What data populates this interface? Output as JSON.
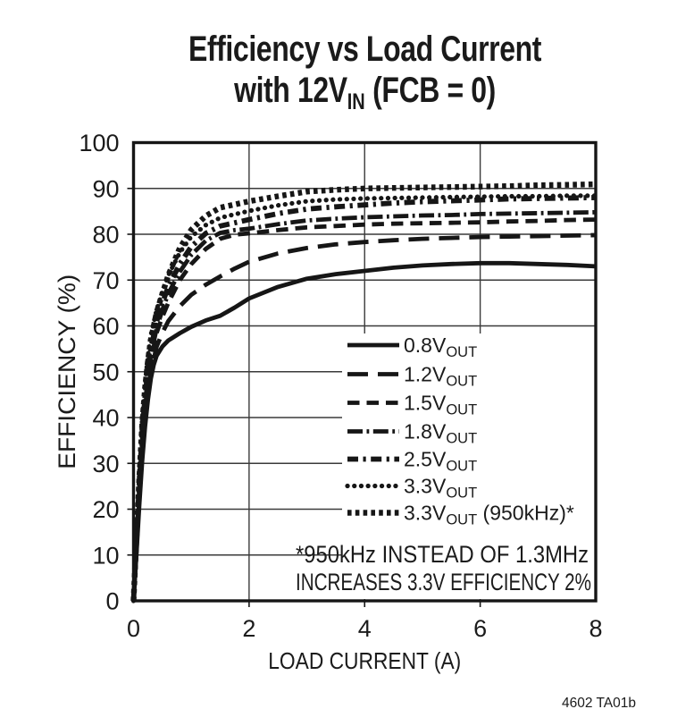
{
  "title": {
    "line1": "Efficiency vs Load Current",
    "line2_pre": "with 12V",
    "line2_sub": "IN",
    "line2_post": " (FCB = 0)"
  },
  "caption": "4602 TA01b",
  "chart_data": {
    "type": "line",
    "title": "Efficiency vs Load Current with 12VIN (FCB = 0)",
    "xlabel": "LOAD CURRENT (A)",
    "ylabel": "EFFICIENCY (%)",
    "xlim": [
      0,
      8
    ],
    "ylim": [
      0,
      100
    ],
    "x_ticks": [
      0,
      2,
      4,
      6,
      8
    ],
    "y_ticks": [
      0,
      10,
      20,
      30,
      40,
      50,
      60,
      70,
      80,
      90,
      100
    ],
    "grid": true,
    "line_color": "#161616",
    "grid_color": "#3a3a3a",
    "legend_position": "inside-lower-right",
    "footnote": [
      "*950kHz INSTEAD OF 1.3MHz",
      "INCREASES 3.3V EFFICIENCY 2%"
    ],
    "series": [
      {
        "name": "0.8VOUT",
        "label": {
          "pre": "0.8V",
          "sub": "OUT",
          "post": ""
        },
        "style": "solid",
        "points": [
          [
            0,
            0
          ],
          [
            0.05,
            10
          ],
          [
            0.1,
            21
          ],
          [
            0.15,
            30.5
          ],
          [
            0.2,
            38
          ],
          [
            0.25,
            44
          ],
          [
            0.3,
            48.5
          ],
          [
            0.35,
            51.5
          ],
          [
            0.4,
            53.5
          ],
          [
            0.5,
            55.5
          ],
          [
            0.6,
            56.8
          ],
          [
            0.8,
            58.4
          ],
          [
            1,
            59.8
          ],
          [
            1.25,
            61.2
          ],
          [
            1.5,
            62.2
          ],
          [
            1.75,
            64
          ],
          [
            2,
            66
          ],
          [
            2.5,
            68.5
          ],
          [
            3,
            70.3
          ],
          [
            3.5,
            71.3
          ],
          [
            4,
            72
          ],
          [
            4.5,
            72.7
          ],
          [
            5,
            73.2
          ],
          [
            5.5,
            73.5
          ],
          [
            6,
            73.7
          ],
          [
            6.5,
            73.7
          ],
          [
            7,
            73.5
          ],
          [
            7.5,
            73.3
          ],
          [
            8,
            73
          ]
        ]
      },
      {
        "name": "1.2VOUT",
        "label": {
          "pre": "1.2V",
          "sub": "OUT",
          "post": ""
        },
        "style": "long-dash",
        "points": [
          [
            0,
            0
          ],
          [
            0.05,
            11
          ],
          [
            0.1,
            22.5
          ],
          [
            0.15,
            32.5
          ],
          [
            0.2,
            40
          ],
          [
            0.25,
            45.5
          ],
          [
            0.3,
            50
          ],
          [
            0.4,
            55.5
          ],
          [
            0.5,
            58.5
          ],
          [
            0.6,
            61
          ],
          [
            0.8,
            64.3
          ],
          [
            1,
            66.8
          ],
          [
            1.25,
            69
          ],
          [
            1.5,
            70.8
          ],
          [
            1.75,
            72.5
          ],
          [
            2,
            74
          ],
          [
            2.5,
            75.8
          ],
          [
            3,
            77
          ],
          [
            3.5,
            77.8
          ],
          [
            4,
            78.3
          ],
          [
            4.5,
            78.7
          ],
          [
            5,
            79
          ],
          [
            5.5,
            79.2
          ],
          [
            6,
            79.4
          ],
          [
            6.5,
            79.5
          ],
          [
            7,
            79.6
          ],
          [
            7.5,
            79.7
          ],
          [
            8,
            79.8
          ]
        ]
      },
      {
        "name": "1.5VOUT",
        "label": {
          "pre": "1.5V",
          "sub": "OUT",
          "post": ""
        },
        "style": "dash",
        "points": [
          [
            0,
            0
          ],
          [
            0.05,
            12
          ],
          [
            0.1,
            24
          ],
          [
            0.15,
            34.5
          ],
          [
            0.2,
            42
          ],
          [
            0.25,
            48
          ],
          [
            0.3,
            52.5
          ],
          [
            0.4,
            58.5
          ],
          [
            0.5,
            62
          ],
          [
            0.6,
            65
          ],
          [
            0.8,
            70
          ],
          [
            1,
            73.5
          ],
          [
            1.25,
            76.8
          ],
          [
            1.5,
            79
          ],
          [
            1.75,
            79.9
          ],
          [
            2,
            80.2
          ],
          [
            2.5,
            80.9
          ],
          [
            3,
            81.5
          ],
          [
            3.5,
            81.8
          ],
          [
            4,
            82.1
          ],
          [
            4.5,
            82.3
          ],
          [
            5,
            82.4
          ],
          [
            5.5,
            82.5
          ],
          [
            6,
            82.6
          ],
          [
            6.5,
            82.8
          ],
          [
            7,
            82.9
          ],
          [
            7.5,
            83.1
          ],
          [
            8,
            83.2
          ]
        ]
      },
      {
        "name": "1.8VOUT",
        "label": {
          "pre": "1.8V",
          "sub": "OUT",
          "post": ""
        },
        "style": "dash-dot",
        "points": [
          [
            0,
            0
          ],
          [
            0.05,
            12.5
          ],
          [
            0.1,
            25
          ],
          [
            0.15,
            35.5
          ],
          [
            0.2,
            43
          ],
          [
            0.25,
            49
          ],
          [
            0.3,
            53.5
          ],
          [
            0.4,
            59.5
          ],
          [
            0.5,
            63.5
          ],
          [
            0.6,
            67
          ],
          [
            0.8,
            71.8
          ],
          [
            1,
            75.5
          ],
          [
            1.25,
            78.6
          ],
          [
            1.5,
            80.3
          ],
          [
            1.75,
            80.9
          ],
          [
            2,
            81.2
          ],
          [
            2.5,
            82.2
          ],
          [
            3,
            83
          ],
          [
            3.5,
            83.4
          ],
          [
            4,
            83.7
          ],
          [
            4.5,
            83.9
          ],
          [
            5,
            84.1
          ],
          [
            5.5,
            84.2
          ],
          [
            6,
            84.4
          ],
          [
            6.5,
            84.5
          ],
          [
            7,
            84.6
          ],
          [
            7.5,
            84.7
          ],
          [
            8,
            84.8
          ]
        ]
      },
      {
        "name": "2.5VOUT",
        "label": {
          "pre": "2.5V",
          "sub": "OUT",
          "post": ""
        },
        "style": "dash-dot-bold",
        "points": [
          [
            0,
            0
          ],
          [
            0.05,
            13
          ],
          [
            0.1,
            26
          ],
          [
            0.15,
            37
          ],
          [
            0.2,
            44.5
          ],
          [
            0.25,
            50.5
          ],
          [
            0.3,
            55
          ],
          [
            0.4,
            61
          ],
          [
            0.5,
            65
          ],
          [
            0.6,
            68.5
          ],
          [
            0.8,
            73.5
          ],
          [
            1,
            77.3
          ],
          [
            1.25,
            80.2
          ],
          [
            1.5,
            81.8
          ],
          [
            2,
            83.2
          ],
          [
            2.5,
            84.5
          ],
          [
            3,
            85.5
          ],
          [
            3.5,
            86
          ],
          [
            4,
            86.4
          ],
          [
            4.5,
            86.8
          ],
          [
            5,
            87.1
          ],
          [
            5.5,
            87.3
          ],
          [
            6,
            87.5
          ],
          [
            6.5,
            87.7
          ],
          [
            7,
            87.8
          ],
          [
            7.5,
            87.9
          ],
          [
            8,
            88
          ]
        ]
      },
      {
        "name": "3.3VOUT",
        "label": {
          "pre": "3.3V",
          "sub": "OUT",
          "post": ""
        },
        "style": "dot-round",
        "points": [
          [
            0,
            0
          ],
          [
            0.05,
            14
          ],
          [
            0.1,
            28
          ],
          [
            0.15,
            39.5
          ],
          [
            0.2,
            47.5
          ],
          [
            0.25,
            53.5
          ],
          [
            0.3,
            58
          ],
          [
            0.4,
            63.5
          ],
          [
            0.5,
            67.5
          ],
          [
            0.6,
            71
          ],
          [
            0.8,
            76
          ],
          [
            1,
            79.5
          ],
          [
            1.25,
            82
          ],
          [
            1.5,
            83.6
          ],
          [
            2,
            85.1
          ],
          [
            2.5,
            86.3
          ],
          [
            3,
            87.2
          ],
          [
            3.5,
            87.6
          ],
          [
            4,
            87.8
          ],
          [
            4.5,
            87.9
          ],
          [
            5,
            88
          ],
          [
            5.5,
            88.1
          ],
          [
            6,
            88.2
          ],
          [
            6.5,
            88.3
          ],
          [
            7,
            88.3
          ],
          [
            7.5,
            88.4
          ],
          [
            8,
            88.4
          ]
        ]
      },
      {
        "name": "3.3VOUT-950kHz",
        "label": {
          "pre": "3.3V",
          "sub": "OUT",
          "post": " (950kHz)*"
        },
        "style": "dot-square",
        "points": [
          [
            0,
            0
          ],
          [
            0.05,
            13.5
          ],
          [
            0.1,
            27
          ],
          [
            0.15,
            38.5
          ],
          [
            0.2,
            46.5
          ],
          [
            0.25,
            52.5
          ],
          [
            0.3,
            57
          ],
          [
            0.4,
            63
          ],
          [
            0.5,
            67
          ],
          [
            0.6,
            71
          ],
          [
            0.8,
            77
          ],
          [
            1,
            81
          ],
          [
            1.25,
            84
          ],
          [
            1.5,
            85.8
          ],
          [
            2,
            87.2
          ],
          [
            2.5,
            88.3
          ],
          [
            3,
            89.3
          ],
          [
            3.5,
            89.7
          ],
          [
            4,
            90
          ],
          [
            4.5,
            90.1
          ],
          [
            5,
            90.2
          ],
          [
            5.5,
            90.3
          ],
          [
            6,
            90.4
          ],
          [
            6.5,
            90.5
          ],
          [
            7,
            90.7
          ],
          [
            7.5,
            90.8
          ],
          [
            8,
            90.9
          ]
        ]
      }
    ]
  }
}
